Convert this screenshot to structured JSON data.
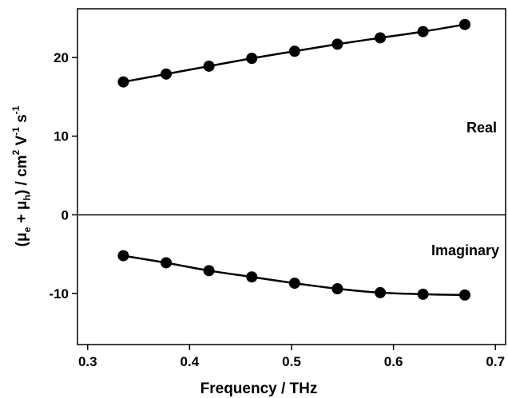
{
  "chart_data": {
    "type": "line",
    "xlabel": "Frequency / THz",
    "ylabel": {
      "open": "(",
      "mu": "μ",
      "e": "e",
      "plus": " + ",
      "h": "h",
      "close": ") / cm",
      "sq": "2",
      "V": " V",
      "vexp": "-1",
      "s": " s",
      "sexp": "-1"
    },
    "xlim": [
      0.29,
      0.71
    ],
    "ylim": [
      -16.5,
      26.2
    ],
    "xticks": [
      0.3,
      0.4,
      0.5,
      0.6,
      0.7
    ],
    "xtick_labels": [
      "0.3",
      "0.4",
      "0.5",
      "0.6",
      "0.7"
    ],
    "yticks": [
      -10,
      0,
      10,
      20
    ],
    "ytick_labels": [
      "-10",
      "0",
      "10",
      "20"
    ],
    "grid": false,
    "zero_line": true,
    "annotations": [
      "Real",
      "Imaginary"
    ],
    "series": [
      {
        "x": [
          0.335,
          0.377,
          0.419,
          0.461,
          0.503,
          0.545,
          0.587,
          0.629,
          0.67
        ],
        "y": [
          16.9,
          17.9,
          18.9,
          19.9,
          20.8,
          21.7,
          22.5,
          23.3,
          24.2
        ]
      },
      {
        "x": [
          0.335,
          0.377,
          0.419,
          0.461,
          0.503,
          0.545,
          0.587,
          0.629,
          0.67
        ],
        "y": [
          -5.2,
          -6.1,
          -7.1,
          -7.9,
          -8.7,
          -9.4,
          -9.9,
          -10.1,
          -10.2
        ]
      }
    ]
  }
}
